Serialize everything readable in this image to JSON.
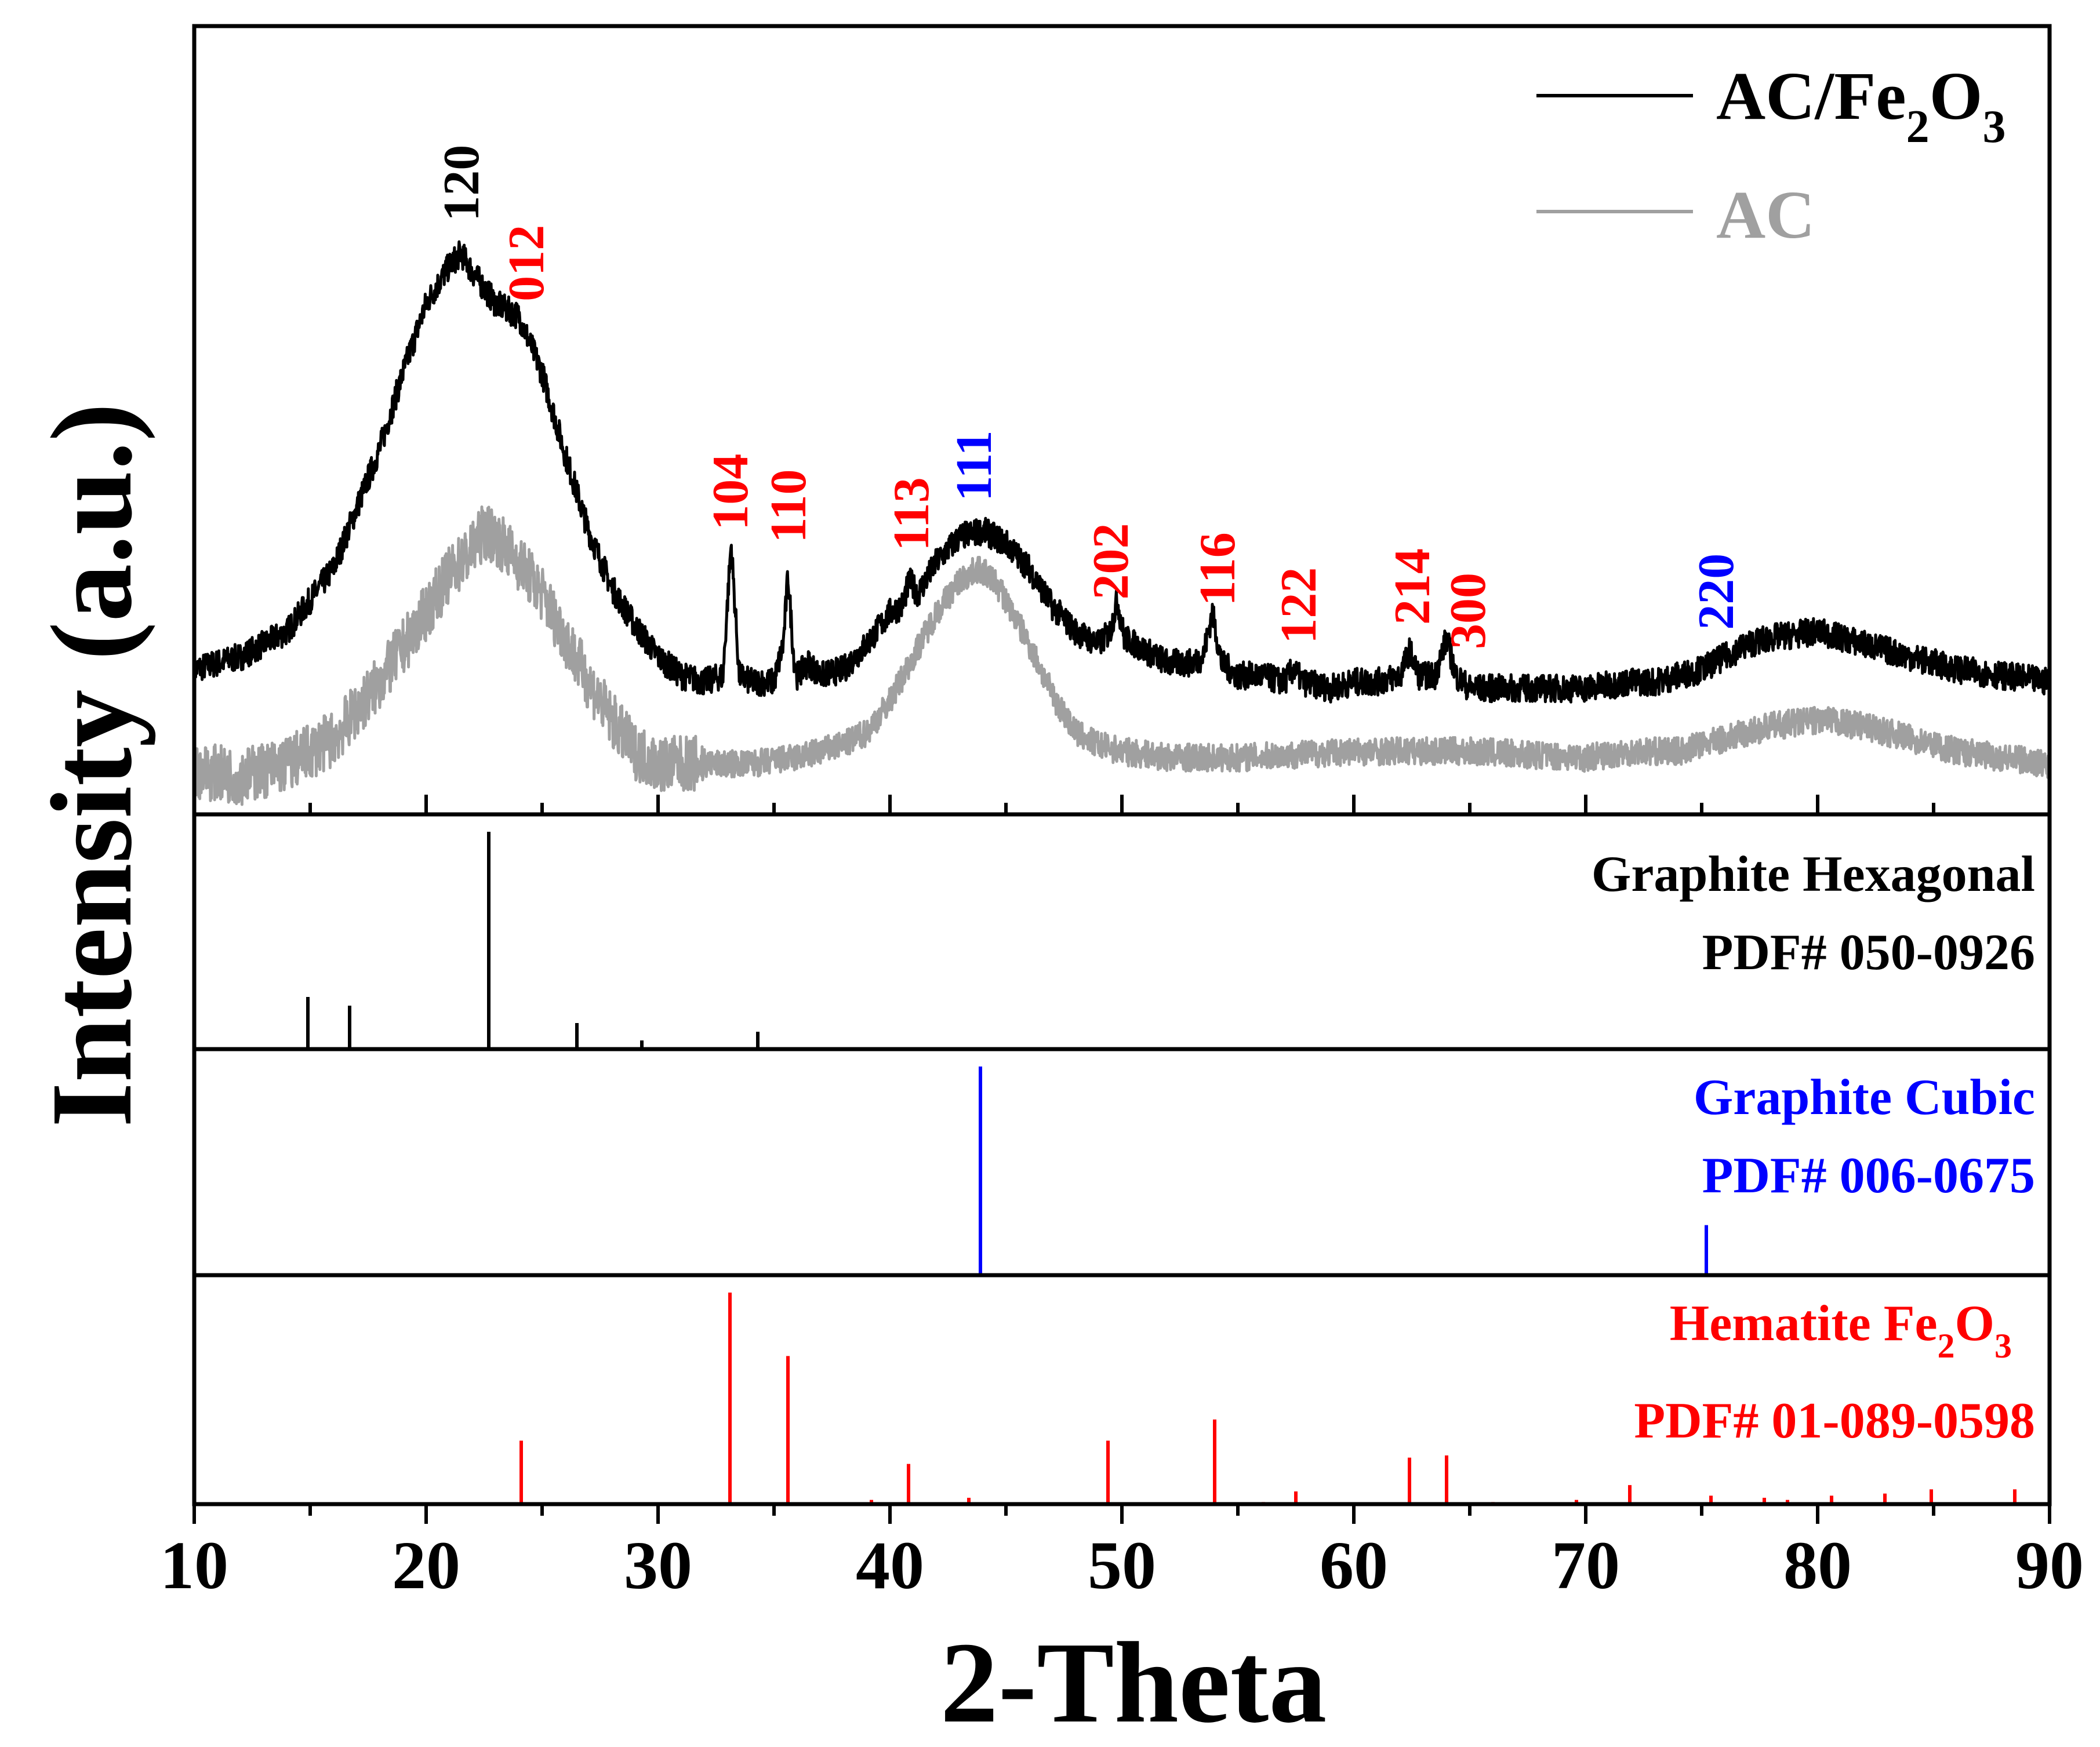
{
  "chart_data": {
    "type": "line",
    "title": "",
    "xlabel": "2-Theta",
    "ylabel": "Intensity (a.u.)",
    "xlim": [
      10,
      90
    ],
    "xticks": [
      "10",
      "20",
      "30",
      "40",
      "50",
      "60",
      "70",
      "80",
      "90"
    ],
    "colors": {
      "black": "#000000",
      "gray": "#a0a0a0",
      "red": "#ff0000",
      "blue": "#0000ff"
    },
    "legend": {
      "position": "top-right",
      "entries": [
        {
          "name": "AC/Fe2O3",
          "base": "AC/Fe",
          "sub1": "2",
          "mid": "O",
          "sub2": "3",
          "color": "#000000"
        },
        {
          "name": "AC",
          "base": "AC",
          "color": "#a0a0a0"
        }
      ]
    },
    "series": [
      {
        "name": "AC/Fe2O3",
        "color": "#000000",
        "points": [
          [
            10,
            0.08
          ],
          [
            12,
            0.1
          ],
          [
            14,
            0.14
          ],
          [
            16,
            0.24
          ],
          [
            18,
            0.43
          ],
          [
            19,
            0.55
          ],
          [
            20,
            0.66
          ],
          [
            21,
            0.72
          ],
          [
            21.5,
            0.74
          ],
          [
            22,
            0.71
          ],
          [
            23,
            0.66
          ],
          [
            24,
            0.64
          ],
          [
            25,
            0.55
          ],
          [
            26,
            0.42
          ],
          [
            27,
            0.3
          ],
          [
            28,
            0.21
          ],
          [
            29,
            0.15
          ],
          [
            30,
            0.1
          ],
          [
            31,
            0.07
          ],
          [
            32,
            0.06
          ],
          [
            32.8,
            0.07
          ],
          [
            33.15,
            0.28
          ],
          [
            33.5,
            0.07
          ],
          [
            34,
            0.06
          ],
          [
            35,
            0.06
          ],
          [
            35.4,
            0.12
          ],
          [
            35.6,
            0.23
          ],
          [
            35.85,
            0.1
          ],
          [
            36,
            0.07
          ],
          [
            36.5,
            0.09
          ],
          [
            37,
            0.07
          ],
          [
            38,
            0.08
          ],
          [
            39,
            0.12
          ],
          [
            40,
            0.17
          ],
          [
            40.5,
            0.18
          ],
          [
            40.85,
            0.22
          ],
          [
            41.2,
            0.2
          ],
          [
            42,
            0.25
          ],
          [
            43,
            0.29
          ],
          [
            44,
            0.3
          ],
          [
            45,
            0.28
          ],
          [
            46,
            0.24
          ],
          [
            47,
            0.18
          ],
          [
            48,
            0.14
          ],
          [
            49,
            0.12
          ],
          [
            49.5,
            0.14
          ],
          [
            49.8,
            0.19
          ],
          [
            50.1,
            0.13
          ],
          [
            51,
            0.11
          ],
          [
            52,
            0.09
          ],
          [
            53,
            0.09
          ],
          [
            53.5,
            0.1
          ],
          [
            53.9,
            0.17
          ],
          [
            54.3,
            0.09
          ],
          [
            55,
            0.07
          ],
          [
            56,
            0.07
          ],
          [
            57,
            0.06
          ],
          [
            57.4,
            0.08
          ],
          [
            57.8,
            0.06
          ],
          [
            59,
            0.05
          ],
          [
            60,
            0.06
          ],
          [
            61,
            0.06
          ],
          [
            62,
            0.07
          ],
          [
            62.4,
            0.11
          ],
          [
            62.8,
            0.07
          ],
          [
            63.5,
            0.07
          ],
          [
            64,
            0.13
          ],
          [
            64.4,
            0.07
          ],
          [
            65,
            0.05
          ],
          [
            67,
            0.05
          ],
          [
            70,
            0.05
          ],
          [
            72,
            0.06
          ],
          [
            73,
            0.06
          ],
          [
            74,
            0.07
          ],
          [
            75,
            0.08
          ],
          [
            76,
            0.1
          ],
          [
            77,
            0.12
          ],
          [
            78,
            0.13
          ],
          [
            80,
            0.14
          ],
          [
            82,
            0.12
          ],
          [
            84,
            0.1
          ],
          [
            86,
            0.08
          ],
          [
            88,
            0.07
          ],
          [
            90,
            0.06
          ]
        ]
      },
      {
        "name": "AC",
        "color": "#a0a0a0",
        "points": [
          [
            10,
            -0.08
          ],
          [
            12,
            -0.09
          ],
          [
            14,
            -0.07
          ],
          [
            16,
            -0.03
          ],
          [
            18,
            0.06
          ],
          [
            20,
            0.17
          ],
          [
            21,
            0.23
          ],
          [
            22,
            0.27
          ],
          [
            22.5,
            0.3
          ],
          [
            23,
            0.29
          ],
          [
            24,
            0.25
          ],
          [
            25,
            0.2
          ],
          [
            26,
            0.13
          ],
          [
            27,
            0.06
          ],
          [
            28,
            0.0
          ],
          [
            29,
            -0.05
          ],
          [
            30,
            -0.07
          ],
          [
            32,
            -0.07
          ],
          [
            34,
            -0.07
          ],
          [
            36,
            -0.06
          ],
          [
            38,
            -0.04
          ],
          [
            39,
            -0.02
          ],
          [
            40,
            0.03
          ],
          [
            41,
            0.1
          ],
          [
            42,
            0.17
          ],
          [
            43,
            0.22
          ],
          [
            43.8,
            0.24
          ],
          [
            44.5,
            0.22
          ],
          [
            45,
            0.19
          ],
          [
            46,
            0.12
          ],
          [
            47,
            0.04
          ],
          [
            48,
            -0.02
          ],
          [
            49,
            -0.04
          ],
          [
            50,
            -0.05
          ],
          [
            52,
            -0.06
          ],
          [
            55,
            -0.06
          ],
          [
            60,
            -0.05
          ],
          [
            65,
            -0.05
          ],
          [
            70,
            -0.06
          ],
          [
            72,
            -0.05
          ],
          [
            74,
            -0.05
          ],
          [
            76,
            -0.03
          ],
          [
            78,
            -0.01
          ],
          [
            80,
            0.0
          ],
          [
            82,
            -0.01
          ],
          [
            84,
            -0.03
          ],
          [
            86,
            -0.05
          ],
          [
            88,
            -0.06
          ],
          [
            90,
            -0.07
          ]
        ]
      }
    ],
    "peak_labels": [
      {
        "x": 21.5,
        "text": "120",
        "color": "#000000"
      },
      {
        "x": 24.3,
        "text": "012",
        "color": "#ff0000"
      },
      {
        "x": 33.1,
        "text": "104",
        "color": "#ff0000"
      },
      {
        "x": 35.6,
        "text": "110",
        "color": "#ff0000"
      },
      {
        "x": 40.9,
        "text": "113",
        "color": "#ff0000"
      },
      {
        "x": 43.6,
        "text": "111",
        "color": "#0000ff"
      },
      {
        "x": 49.5,
        "text": "202",
        "color": "#ff0000"
      },
      {
        "x": 54.1,
        "text": "116",
        "color": "#ff0000"
      },
      {
        "x": 57.6,
        "text": "122",
        "color": "#ff0000"
      },
      {
        "x": 62.5,
        "text": "214",
        "color": "#ff0000"
      },
      {
        "x": 64.9,
        "text": "300",
        "color": "#ff0000"
      },
      {
        "x": 75.6,
        "text": "220",
        "color": "#0000ff"
      }
    ],
    "reference_panels": [
      {
        "name": "Graphite Hexagonal",
        "line1": "Graphite Hexagonal",
        "line2": "PDF# 050-0926",
        "color": "#000000",
        "peaks": [
          [
            14.9,
            0.24
          ],
          [
            16.7,
            0.2
          ],
          [
            22.7,
            1.0
          ],
          [
            26.5,
            0.12
          ],
          [
            29.3,
            0.04
          ],
          [
            34.3,
            0.08
          ]
        ]
      },
      {
        "name": "Graphite Cubic",
        "line1": "Graphite Cubic",
        "line2": "PDF# 006-0675",
        "color": "#0000ff",
        "peaks": [
          [
            43.9,
            1.0
          ],
          [
            75.2,
            0.24
          ]
        ]
      },
      {
        "name": "Hematite Fe2O3",
        "line1_base": "Hematite Fe",
        "line1_sub1": "2",
        "line1_mid": "O",
        "line1_sub2": "3",
        "line2": "PDF# 01-089-0598",
        "color": "#ff0000",
        "peaks": [
          [
            24.1,
            0.3
          ],
          [
            33.1,
            1.0
          ],
          [
            35.6,
            0.7
          ],
          [
            39.2,
            0.02
          ],
          [
            40.8,
            0.19
          ],
          [
            43.4,
            0.03
          ],
          [
            49.4,
            0.3
          ],
          [
            54.0,
            0.4
          ],
          [
            56.1,
            0.01
          ],
          [
            57.5,
            0.06
          ],
          [
            62.4,
            0.22
          ],
          [
            64.0,
            0.23
          ],
          [
            66.0,
            0.01
          ],
          [
            69.6,
            0.02
          ],
          [
            71.9,
            0.09
          ],
          [
            75.4,
            0.04
          ],
          [
            77.7,
            0.03
          ],
          [
            78.7,
            0.02
          ],
          [
            80.6,
            0.04
          ],
          [
            82.9,
            0.05
          ],
          [
            84.9,
            0.07
          ],
          [
            88.5,
            0.07
          ]
        ]
      }
    ]
  }
}
